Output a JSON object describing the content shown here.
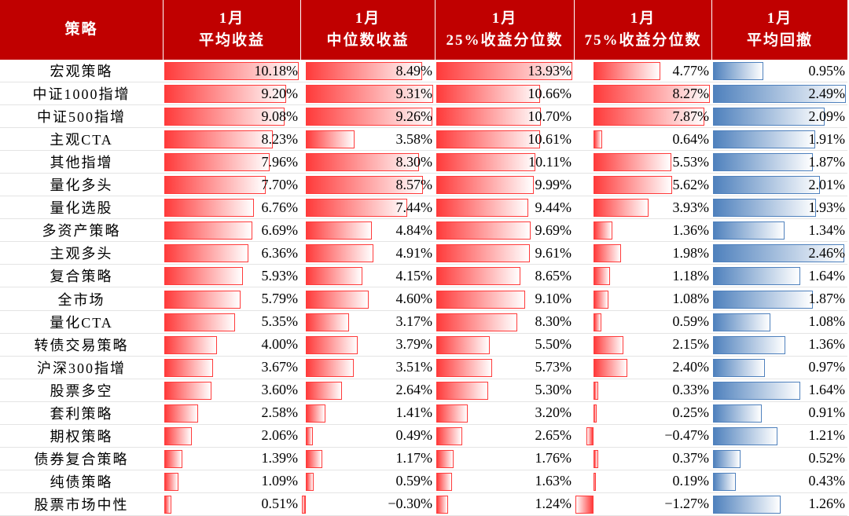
{
  "table": {
    "strategy_header": "策略",
    "rows": [
      "宏观策略",
      "中证1000指增",
      "中证500指增",
      "主观CTA",
      "其他指增",
      "量化多头",
      "量化选股",
      "多资产策略",
      "主观多头",
      "复合策略",
      "全市场",
      "量化CTA",
      "转债交易策略",
      "沪深300指增",
      "股票多空",
      "套利策略",
      "期权策略",
      "债券复合策略",
      "纯债策略",
      "股票市场中性"
    ],
    "columns": [
      {
        "month": "1月",
        "name": "平均收益",
        "color": "#ff3b3b",
        "values": [
          10.18,
          9.2,
          9.08,
          8.23,
          7.96,
          7.7,
          6.76,
          6.69,
          6.36,
          5.93,
          5.79,
          5.35,
          4.0,
          3.67,
          3.6,
          2.58,
          2.06,
          1.39,
          1.09,
          0.51
        ],
        "value_labels": [
          "10.18%",
          "9.20%",
          "9.08%",
          "8.23%",
          "7.96%",
          "7.70%",
          "6.76%",
          "6.69%",
          "6.36%",
          "5.93%",
          "5.79%",
          "5.35%",
          "4.00%",
          "3.67%",
          "3.60%",
          "2.58%",
          "2.06%",
          "1.39%",
          "1.09%",
          "0.51%"
        ]
      },
      {
        "month": "1月",
        "name": "中位数收益",
        "color": "#ff3b3b",
        "values": [
          8.49,
          9.31,
          9.26,
          3.58,
          8.3,
          8.57,
          7.44,
          4.84,
          4.91,
          4.15,
          4.6,
          3.17,
          3.79,
          3.51,
          2.64,
          1.41,
          0.49,
          1.17,
          0.59,
          -0.3
        ],
        "value_labels": [
          "8.49%",
          "9.31%",
          "9.26%",
          "3.58%",
          "8.30%",
          "8.57%",
          "7.44%",
          "4.84%",
          "4.91%",
          "4.15%",
          "4.60%",
          "3.17%",
          "3.79%",
          "3.51%",
          "2.64%",
          "1.41%",
          "0.49%",
          "1.17%",
          "0.59%",
          "−0.30%"
        ]
      },
      {
        "month": "1月",
        "name": "25%收益分位数",
        "color": "#ff3b3b",
        "values": [
          13.93,
          10.66,
          10.7,
          10.61,
          10.11,
          9.99,
          9.44,
          9.69,
          9.61,
          8.65,
          9.1,
          8.3,
          5.5,
          5.73,
          5.3,
          3.2,
          2.65,
          1.76,
          1.63,
          1.24
        ],
        "value_labels": [
          "13.93%",
          "10.66%",
          "10.70%",
          "10.61%",
          "10.11%",
          "9.99%",
          "9.44%",
          "9.69%",
          "9.61%",
          "8.65%",
          "9.10%",
          "8.30%",
          "5.50%",
          "5.73%",
          "5.30%",
          "3.20%",
          "2.65%",
          "1.76%",
          "1.63%",
          "1.24%"
        ]
      },
      {
        "month": "1月",
        "name": "75%收益分位数",
        "color": "#ff3b3b",
        "values": [
          4.77,
          8.27,
          7.87,
          0.64,
          5.53,
          5.62,
          3.93,
          1.36,
          1.98,
          1.18,
          1.08,
          0.59,
          2.15,
          2.4,
          0.33,
          0.25,
          -0.47,
          0.37,
          0.19,
          -1.27
        ],
        "value_labels": [
          "4.77%",
          "8.27%",
          "7.87%",
          "0.64%",
          "5.53%",
          "5.62%",
          "3.93%",
          "1.36%",
          "1.98%",
          "1.18%",
          "1.08%",
          "0.59%",
          "2.15%",
          "2.40%",
          "0.33%",
          "0.25%",
          "−0.47%",
          "0.37%",
          "0.19%",
          "−1.27%"
        ]
      },
      {
        "month": "1月",
        "name": "平均回撤",
        "color": "#4f81bd",
        "values": [
          0.95,
          2.49,
          2.09,
          1.91,
          1.87,
          2.01,
          1.93,
          1.34,
          2.46,
          1.64,
          1.87,
          1.08,
          1.36,
          0.97,
          1.64,
          0.91,
          1.21,
          0.52,
          0.43,
          1.26
        ],
        "value_labels": [
          "0.95%",
          "2.49%",
          "2.09%",
          "1.91%",
          "1.87%",
          "2.01%",
          "1.93%",
          "1.34%",
          "2.46%",
          "1.64%",
          "1.87%",
          "1.08%",
          "1.36%",
          "0.97%",
          "1.64%",
          "0.91%",
          "1.21%",
          "0.52%",
          "0.43%",
          "1.26%"
        ]
      }
    ]
  }
}
